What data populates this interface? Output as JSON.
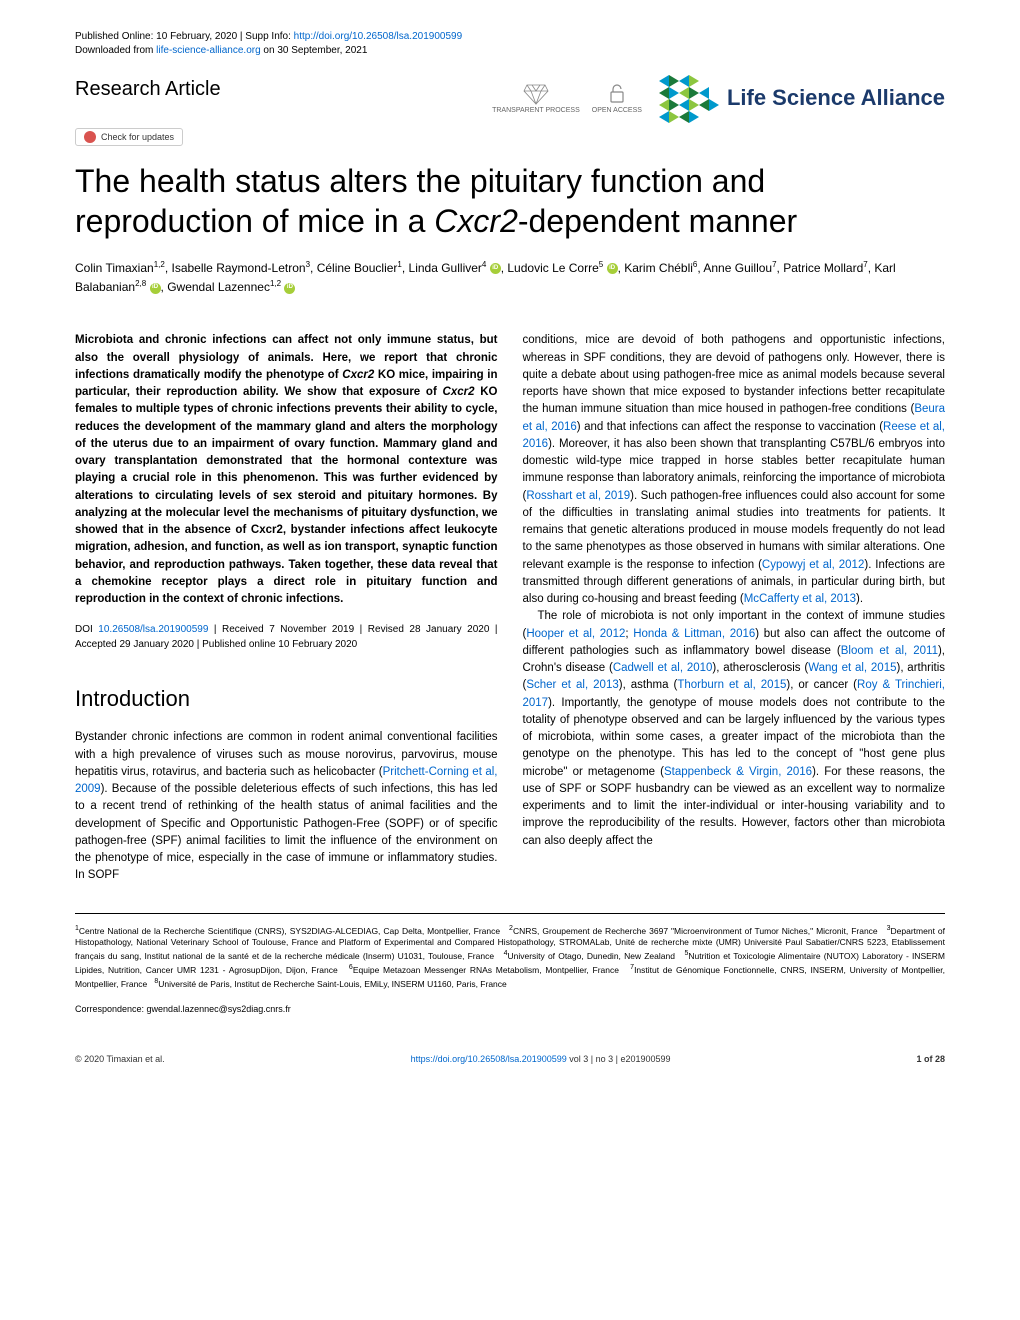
{
  "header": {
    "published": "Published Online: 10 February, 2020 | Supp Info: ",
    "doi_url": "http://doi.org/10.26508/lsa.201900599",
    "downloaded": "Downloaded from ",
    "download_site": "life-science-alliance.org",
    "download_date": " on 30 September, 2021"
  },
  "article_type": "Research Article",
  "badges": {
    "transparent": "TRANSPARENT PROCESS",
    "open_access": "OPEN ACCESS"
  },
  "logo_text": "Life Science Alliance",
  "check_updates": "Check for updates",
  "title_pre": "The health status alters the pituitary function and reproduction of mice in a ",
  "title_em": "Cxcr2",
  "title_post": "-dependent manner",
  "authors_html": "Colin Timaxian<sup>1,2</sup>, Isabelle Raymond-Letron<sup>3</sup>, Céline Bouclier<sup>1</sup>, Linda Gulliver<sup>4</sup> <span class='orcid'></span>, Ludovic Le Corre<sup>5</sup> <span class='orcid'></span>, Karim Chébli<sup>6</sup>, Anne Guillou<sup>7</sup>, Patrice Mollard<sup>7</sup>, Karl Balabanian<sup>2,8</sup> <span class='orcid'></span>, Gwendal Lazennec<sup>1,2</sup> <span class='orcid'></span>",
  "abstract": "Microbiota and chronic infections can affect not only immune status, but also the overall physiology of animals. Here, we report that chronic infections dramatically modify the phenotype of <em>Cxcr2</em> KO mice, impairing in particular, their reproduction ability. We show that exposure of <em>Cxcr2</em> KO females to multiple types of chronic infections prevents their ability to cycle, reduces the development of the mammary gland and alters the morphology of the uterus due to an impairment of ovary function. Mammary gland and ovary transplantation demonstrated that the hormonal contexture was playing a crucial role in this phenomenon. This was further evidenced by alterations to circulating levels of sex steroid and pituitary hormones. By analyzing at the molecular level the mechanisms of pituitary dysfunction, we showed that in the absence of Cxcr2, bystander infections affect leukocyte migration, adhesion, and function, as well as ion transport, synaptic function behavior, and reproduction pathways. Taken together, these data reveal that a chemokine receptor plays a direct role in pituitary function and reproduction in the context of chronic infections.",
  "doi_pre": "DOI ",
  "doi_link": "10.26508/lsa.201900599",
  "doi_dates": " | Received 7 November 2019 | Revised 28 January 2020 | Accepted 29 January 2020 | Published online 10 February 2020",
  "intro_heading": "Introduction",
  "intro_p1_pre": "Bystander chronic infections are common in rodent animal conventional facilities with a high prevalence of viruses such as mouse norovirus, parvovirus, mouse hepatitis virus, rotavirus, and bacteria such as helicobacter (",
  "intro_p1_ref1": "Pritchett-Corning et al, 2009",
  "intro_p1_post": "). Because of the possible deleterious effects of such infections, this has led to a recent trend of rethinking of the health status of animal facilities and the development of Specific and Opportunistic Pathogen-Free (SOPF) or of specific pathogen-free (SPF) animal facilities to limit the influence of the environment on the phenotype of mice, especially in the case of immune or inflammatory studies. In SOPF",
  "col2_p1": "conditions, mice are devoid of both pathogens and opportunistic infections, whereas in SPF conditions, they are devoid of pathogens only. However, there is quite a debate about using pathogen-free mice as animal models because several reports have shown that mice exposed to bystander infections better recapitulate the human immune situation than mice housed in pathogen-free conditions (<span class='ref-link'>Beura et al, 2016</span>) and that infections can affect the response to vaccination (<span class='ref-link'>Reese et al, 2016</span>). Moreover, it has also been shown that transplanting C57BL/6 embryos into domestic wild-type mice trapped in horse stables better recapitulate human immune response than laboratory animals, reinforcing the importance of microbiota (<span class='ref-link'>Rosshart et al, 2019</span>). Such pathogen-free influences could also account for some of the difficulties in translating animal studies into treatments for patients. It remains that genetic alterations produced in mouse models frequently do not lead to the same phenotypes as those observed in humans with similar alterations. One relevant example is the response to infection (<span class='ref-link'>Cypowyj et al, 2012</span>). Infections are transmitted through different generations of animals, in particular during birth, but also during co-housing and breast feeding (<span class='ref-link'>McCafferty et al, 2013</span>).",
  "col2_p2": "The role of microbiota is not only important in the context of immune studies (<span class='ref-link'>Hooper et al, 2012</span>; <span class='ref-link'>Honda & Littman, 2016</span>) but also can affect the outcome of different pathologies such as inflammatory bowel disease (<span class='ref-link'>Bloom et al, 2011</span>), Crohn's disease (<span class='ref-link'>Cadwell et al, 2010</span>), atherosclerosis (<span class='ref-link'>Wang et al, 2015</span>), arthritis (<span class='ref-link'>Scher et al, 2013</span>), asthma (<span class='ref-link'>Thorburn et al, 2015</span>), or cancer (<span class='ref-link'>Roy & Trinchieri, 2017</span>). Importantly, the genotype of mouse models does not contribute to the totality of phenotype observed and can be largely influenced by the various types of microbiota, within some cases, a greater impact of the microbiota than the genotype on the phenotype. This has led to the concept of \"host gene plus microbe\" or metagenome (<span class='ref-link'>Stappenbeck & Virgin, 2016</span>). For these reasons, the use of SPF or SOPF husbandry can be viewed as an excellent way to normalize experiments and to limit the inter-individual or inter-housing variability and to improve the reproducibility of the results. However, factors other than microbiota can also deeply affect the",
  "affiliations": "<sup>1</sup>Centre National de la Recherche Scientifique (CNRS), SYS2DIAG-ALCEDIAG, Cap Delta, Montpellier, France &nbsp; <sup>2</sup>CNRS, Groupement de Recherche 3697 \"Microenvironment of Tumor Niches,\" Micronit, France &nbsp; <sup>3</sup>Department of Histopathology, National Veterinary School of Toulouse, France and Platform of Experimental and Compared Histopathology, STROMALab, Unité de recherche mixte (UMR) Université Paul Sabatier/CNRS 5223, Etablissement français du sang, Institut national de la santé et de la recherche médicale (Inserm) U1031, Toulouse, France &nbsp; <sup>4</sup>University of Otago, Dunedin, New Zealand &nbsp; <sup>5</sup>Nutrition et Toxicologie Alimentaire (NUTOX) Laboratory - INSERM Lipides, Nutrition, Cancer UMR 1231 - AgrosupDijon, Dijon, France &nbsp; <sup>6</sup>Equipe Metazoan Messenger RNAs Metabolism, Montpellier, France &nbsp; <sup>7</sup>Institut de Génomique Fonctionnelle, CNRS, INSERM, University of Montpellier, Montpellier, France &nbsp; <sup>8</sup>Université de Paris, Institut de Recherche Saint-Louis, EMiLy, INSERM U1160, Paris, France",
  "correspondence": "Correspondence: gwendal.lazennec@sys2diag.cnrs.fr",
  "footer": {
    "copyright": "© 2020 Timaxian et al.",
    "doi": "https://doi.org/10.26508/lsa.201900599",
    "vol": " vol 3 | no 3 | e201900599",
    "page": "1 of 28"
  },
  "colors": {
    "link": "#0066cc",
    "logo": "#1b3a6b",
    "triangle1": "#0099cc",
    "triangle2": "#1b7a3a",
    "triangle3": "#8cc63f"
  }
}
